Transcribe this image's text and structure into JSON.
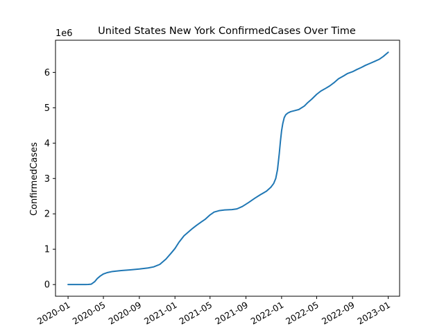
{
  "chart_data": {
    "type": "line",
    "title": "United States New York ConfirmedCases Over Time",
    "xlabel": "",
    "ylabel": "ConfirmedCases",
    "y_offset_label": "1e6",
    "xlim": [
      "2019-11-19",
      "2023-02-09"
    ],
    "ylim": [
      -0.33,
      6.91
    ],
    "x_ticks": [
      "2020-01-01",
      "2020-05-01",
      "2020-09-01",
      "2021-01-01",
      "2021-05-01",
      "2021-09-01",
      "2022-01-01",
      "2022-05-01",
      "2022-09-01",
      "2023-01-01"
    ],
    "x_tick_labels": [
      "2020-01",
      "2020-05",
      "2020-09",
      "2021-01",
      "2021-05",
      "2021-09",
      "2022-01",
      "2022-05",
      "2022-09",
      "2023-01"
    ],
    "y_ticks": [
      0,
      1,
      2,
      3,
      4,
      5,
      6
    ],
    "y_tick_labels": [
      "0",
      "1",
      "2",
      "3",
      "4",
      "5",
      "6"
    ],
    "grid": false,
    "series": [
      {
        "color": "#1f77b4",
        "x": [
          "2020-01-01",
          "2020-03-01",
          "2020-03-10",
          "2020-03-20",
          "2020-04-01",
          "2020-04-10",
          "2020-04-20",
          "2020-05-01",
          "2020-05-15",
          "2020-06-01",
          "2020-07-01",
          "2020-08-01",
          "2020-09-01",
          "2020-10-01",
          "2020-10-20",
          "2020-11-10",
          "2020-12-01",
          "2020-12-20",
          "2021-01-01",
          "2021-01-15",
          "2021-02-01",
          "2021-02-15",
          "2021-03-01",
          "2021-03-15",
          "2021-04-01",
          "2021-04-15",
          "2021-05-01",
          "2021-05-15",
          "2021-06-01",
          "2021-06-20",
          "2021-07-15",
          "2021-08-01",
          "2021-08-20",
          "2021-09-10",
          "2021-10-01",
          "2021-10-20",
          "2021-11-10",
          "2021-11-25",
          "2021-12-05",
          "2021-12-12",
          "2021-12-18",
          "2021-12-24",
          "2021-12-28",
          "2022-01-01",
          "2022-01-05",
          "2022-01-10",
          "2022-01-15",
          "2022-01-22",
          "2022-02-01",
          "2022-02-15",
          "2022-03-01",
          "2022-03-20",
          "2022-04-01",
          "2022-04-15",
          "2022-05-01",
          "2022-05-15",
          "2022-06-01",
          "2022-06-15",
          "2022-07-01",
          "2022-07-15",
          "2022-08-01",
          "2022-08-15",
          "2022-09-01",
          "2022-09-15",
          "2022-10-01",
          "2022-10-15",
          "2022-11-01",
          "2022-11-15",
          "2022-12-01",
          "2022-12-15",
          "2023-01-01"
        ],
        "y": [
          0,
          0,
          0.003,
          0.01,
          0.08,
          0.17,
          0.24,
          0.3,
          0.34,
          0.37,
          0.395,
          0.415,
          0.44,
          0.47,
          0.5,
          0.57,
          0.72,
          0.9,
          1.02,
          1.2,
          1.38,
          1.48,
          1.58,
          1.67,
          1.77,
          1.85,
          1.97,
          2.05,
          2.09,
          2.11,
          2.12,
          2.14,
          2.21,
          2.32,
          2.44,
          2.54,
          2.64,
          2.75,
          2.86,
          3.0,
          3.25,
          3.7,
          4.05,
          4.35,
          4.55,
          4.72,
          4.8,
          4.85,
          4.89,
          4.92,
          4.95,
          5.05,
          5.15,
          5.25,
          5.38,
          5.47,
          5.55,
          5.62,
          5.72,
          5.82,
          5.9,
          5.97,
          6.02,
          6.08,
          6.14,
          6.2,
          6.26,
          6.31,
          6.37,
          6.45,
          6.57
        ]
      }
    ]
  }
}
